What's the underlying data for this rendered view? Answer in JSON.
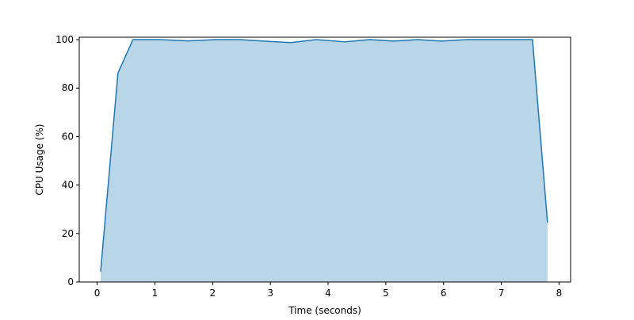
{
  "chart_data": {
    "type": "area",
    "title": "",
    "xlabel": "Time (seconds)",
    "ylabel": "CPU Usage (%)",
    "xlim": [
      -0.31,
      8.2
    ],
    "ylim": [
      0,
      101
    ],
    "x_ticks": [
      0,
      1,
      2,
      3,
      4,
      5,
      6,
      7,
      8
    ],
    "y_ticks": [
      0,
      20,
      40,
      60,
      80,
      100
    ],
    "grid": false,
    "legend": "none",
    "line_color": "#1f77b4",
    "fill_color": "#b9d5e8",
    "series": [
      {
        "x": [
          0.06,
          0.36,
          0.62,
          1.09,
          1.57,
          2.06,
          2.47,
          2.97,
          3.36,
          3.79,
          4.29,
          4.72,
          5.13,
          5.55,
          5.96,
          6.41,
          6.87,
          7.31,
          7.54,
          7.8
        ],
        "values": [
          4.3,
          86.2,
          100,
          100,
          99.5,
          100,
          100,
          99.3,
          98.8,
          100,
          99.1,
          100,
          99.4,
          100,
          99.4,
          100,
          100,
          100,
          100,
          24.5
        ]
      }
    ]
  }
}
